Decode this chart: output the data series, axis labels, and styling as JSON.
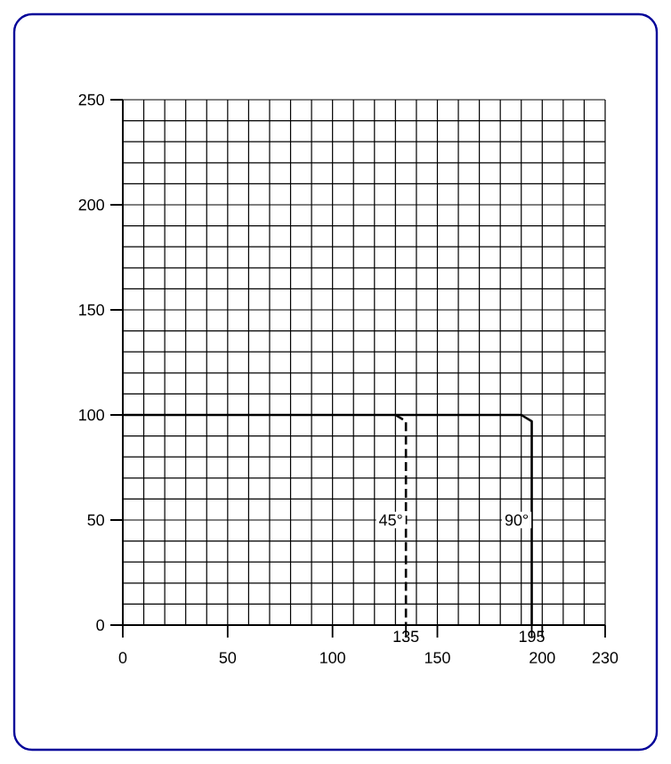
{
  "chart_data": {
    "type": "line",
    "xlim": [
      0,
      230
    ],
    "ylim": [
      0,
      250
    ],
    "xticks": [
      0,
      50,
      100,
      {
        "value": 135,
        "label": null
      },
      150,
      {
        "value": 195,
        "label": null
      },
      200,
      230
    ],
    "annotations": [
      {
        "text": "135",
        "x": 135,
        "y": 0
      },
      {
        "text": "195",
        "x": 195,
        "y": 0
      }
    ],
    "yticks": [
      0,
      50,
      100,
      150,
      200,
      250
    ],
    "grid": true,
    "legend": false,
    "marker": "none",
    "series": [
      {
        "name": "45°",
        "color": "#000000",
        "line_style": "dashed",
        "x": [
          130,
          135,
          135
        ],
        "values": [
          100,
          97,
          0
        ]
      },
      {
        "name": "90°",
        "color": "#000000",
        "line_style": "solid",
        "x": [
          0,
          190,
          195,
          195
        ],
        "values": [
          100,
          100,
          97,
          0
        ]
      }
    ]
  }
}
